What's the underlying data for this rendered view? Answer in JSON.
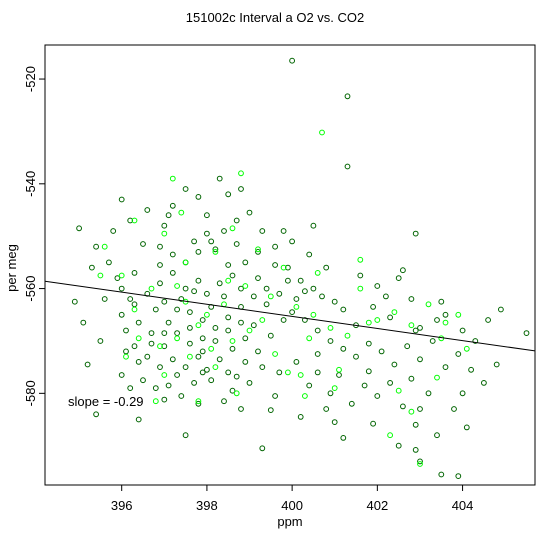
{
  "chart_data": {
    "type": "scatter",
    "title": "151002c   Interval a O2 vs. CO2",
    "xlabel": "ppm",
    "ylabel": "per meg",
    "xlim": [
      394.2,
      405.7
    ],
    "ylim": [
      -597.5,
      -513.5
    ],
    "x_ticks": [
      396,
      398,
      400,
      402,
      404
    ],
    "x_tick_labels": [
      "396",
      "398",
      "400",
      "402",
      "404"
    ],
    "y_ticks": [
      -520,
      -540,
      -560,
      -580
    ],
    "y_tick_labels": [
      "-520",
      "-540",
      "-560",
      "-580"
    ],
    "annotation": "slope =  -0.29",
    "fit_line": {
      "slope": -0.29,
      "x": [
        394.2,
        405.7
      ],
      "y": [
        -558.6,
        -571.9
      ]
    },
    "colors": {
      "dark_points": "#006400",
      "bright_points": "#00ff00",
      "line": "#000000"
    },
    "series": [
      {
        "color": "#006400",
        "points": [
          [
            400.0,
            -516.5
          ],
          [
            401.3,
            -523.3
          ],
          [
            401.3,
            -536.7
          ],
          [
            397.2,
            -544.2
          ],
          [
            397.0,
            -548.0
          ],
          [
            396.9,
            -552.0
          ],
          [
            396.3,
            -557.0
          ],
          [
            396.0,
            -560.0
          ],
          [
            395.6,
            -562.0
          ],
          [
            395.5,
            -570.0
          ],
          [
            395.2,
            -574.5
          ],
          [
            396.1,
            -572.0
          ],
          [
            396.5,
            -577.5
          ],
          [
            397.0,
            -581.2
          ],
          [
            397.8,
            -582.0
          ],
          [
            398.8,
            -583.0
          ],
          [
            399.5,
            -583.2
          ],
          [
            399.3,
            -590.5
          ],
          [
            400.2,
            -584.5
          ],
          [
            401.0,
            -585.5
          ],
          [
            401.9,
            -585.8
          ],
          [
            401.1,
            -576.5
          ],
          [
            400.6,
            -572.5
          ],
          [
            401.8,
            -575.8
          ],
          [
            402.3,
            -578.0
          ],
          [
            402.8,
            -577.2
          ],
          [
            403.0,
            -583.0
          ],
          [
            402.5,
            -590.0
          ],
          [
            402.9,
            -590.8
          ],
          [
            403.0,
            -593.0
          ],
          [
            403.5,
            -595.5
          ],
          [
            403.9,
            -595.8
          ],
          [
            404.0,
            -580.0
          ],
          [
            404.8,
            -574.5
          ],
          [
            404.3,
            -570.0
          ],
          [
            404.6,
            -566.0
          ],
          [
            404.9,
            -564.0
          ],
          [
            405.5,
            -568.5
          ],
          [
            403.5,
            -562.5
          ],
          [
            403.6,
            -565.0
          ],
          [
            403.0,
            -567.5
          ],
          [
            402.8,
            -562.0
          ],
          [
            402.9,
            -549.5
          ],
          [
            402.5,
            -558.0
          ],
          [
            402.2,
            -561.5
          ],
          [
            401.9,
            -563.5
          ],
          [
            401.5,
            -567.0
          ],
          [
            401.2,
            -564.0
          ],
          [
            400.5,
            -560.0
          ],
          [
            399.8,
            -549.0
          ],
          [
            398.8,
            -541.0
          ],
          [
            398.5,
            -542.0
          ],
          [
            398.0,
            -546.0
          ],
          [
            398.2,
            -552.5
          ],
          [
            398.5,
            -555.5
          ],
          [
            398.8,
            -560.0
          ],
          [
            399.2,
            -558.0
          ],
          [
            399.6,
            -555.5
          ],
          [
            399.9,
            -556.0
          ],
          [
            400.2,
            -558.5
          ],
          [
            400.1,
            -562.0
          ],
          [
            399.8,
            -566.0
          ],
          [
            399.5,
            -569.0
          ],
          [
            399.2,
            -572.0
          ],
          [
            398.9,
            -574.0
          ],
          [
            398.5,
            -576.0
          ],
          [
            398.1,
            -577.5
          ],
          [
            397.7,
            -578.0
          ],
          [
            397.3,
            -576.5
          ],
          [
            396.9,
            -575.0
          ],
          [
            396.6,
            -573.0
          ],
          [
            396.3,
            -571.0
          ],
          [
            396.1,
            -568.0
          ],
          [
            396.0,
            -565.0
          ],
          [
            396.3,
            -563.0
          ],
          [
            396.6,
            -561.0
          ],
          [
            396.9,
            -559.0
          ],
          [
            397.2,
            -557.0
          ],
          [
            397.5,
            -555.0
          ],
          [
            397.8,
            -553.0
          ],
          [
            398.1,
            -551.0
          ],
          [
            398.4,
            -549.0
          ],
          [
            398.7,
            -547.0
          ],
          [
            397.4,
            -562.0
          ],
          [
            397.6,
            -564.5
          ],
          [
            397.9,
            -566.0
          ],
          [
            398.2,
            -567.5
          ],
          [
            398.5,
            -565.5
          ],
          [
            398.8,
            -563.5
          ],
          [
            397.1,
            -566.5
          ],
          [
            397.3,
            -568.5
          ],
          [
            397.6,
            -570.5
          ],
          [
            397.9,
            -572.0
          ],
          [
            398.2,
            -570.0
          ],
          [
            398.5,
            -568.0
          ],
          [
            398.8,
            -566.5
          ],
          [
            396.8,
            -564.0
          ],
          [
            397.0,
            -562.5
          ],
          [
            397.5,
            -560.0
          ],
          [
            397.8,
            -558.5
          ],
          [
            398.0,
            -561.0
          ],
          [
            398.3,
            -559.0
          ],
          [
            398.6,
            -557.5
          ],
          [
            398.9,
            -555.0
          ],
          [
            399.1,
            -561.5
          ],
          [
            399.4,
            -563.0
          ],
          [
            399.7,
            -561.0
          ],
          [
            400.0,
            -564.5
          ],
          [
            400.3,
            -566.0
          ],
          [
            400.6,
            -568.0
          ],
          [
            400.9,
            -570.0
          ],
          [
            401.2,
            -571.5
          ],
          [
            401.5,
            -573.0
          ],
          [
            401.8,
            -570.5
          ],
          [
            402.1,
            -572.0
          ],
          [
            402.4,
            -574.5
          ],
          [
            402.7,
            -571.0
          ],
          [
            403.0,
            -573.5
          ],
          [
            403.3,
            -570.0
          ],
          [
            403.6,
            -575.0
          ],
          [
            403.9,
            -572.5
          ],
          [
            404.2,
            -575.5
          ],
          [
            397.0,
            -571.0
          ],
          [
            397.2,
            -573.5
          ],
          [
            397.5,
            -575.0
          ],
          [
            397.8,
            -573.0
          ],
          [
            398.0,
            -575.5
          ],
          [
            398.3,
            -573.5
          ],
          [
            398.6,
            -571.5
          ],
          [
            398.9,
            -569.5
          ],
          [
            399.1,
            -567.0
          ],
          [
            396.4,
            -566.5
          ],
          [
            396.7,
            -568.5
          ],
          [
            396.2,
            -562.0
          ],
          [
            395.9,
            -558.0
          ],
          [
            395.7,
            -555.0
          ],
          [
            395.4,
            -552.0
          ],
          [
            395.8,
            -549.0
          ],
          [
            396.2,
            -547.0
          ],
          [
            396.6,
            -545.0
          ],
          [
            397.5,
            -541.0
          ],
          [
            398.3,
            -539.0
          ],
          [
            399.0,
            -545.5
          ],
          [
            399.3,
            -549.0
          ],
          [
            399.6,
            -552.0
          ],
          [
            400.4,
            -553.5
          ],
          [
            400.8,
            -556.0
          ],
          [
            401.6,
            -557.5
          ],
          [
            402.0,
            -559.5
          ],
          [
            402.6,
            -556.5
          ],
          [
            400.7,
            -561.5
          ],
          [
            401.0,
            -562.5
          ],
          [
            395.0,
            -548.5
          ],
          [
            395.3,
            -556.0
          ],
          [
            394.9,
            -562.5
          ],
          [
            395.1,
            -566.5
          ],
          [
            396.0,
            -576.5
          ],
          [
            396.8,
            -579.0
          ],
          [
            397.4,
            -580.5
          ],
          [
            398.6,
            -579.5
          ],
          [
            399.7,
            -576.0
          ],
          [
            400.4,
            -578.5
          ],
          [
            400.9,
            -580.0
          ],
          [
            401.4,
            -582.0
          ],
          [
            402.0,
            -580.5
          ],
          [
            402.6,
            -582.5
          ],
          [
            403.2,
            -580.0
          ],
          [
            403.8,
            -583.0
          ],
          [
            404.5,
            -578.0
          ],
          [
            399.0,
            -578.0
          ],
          [
            399.3,
            -575.0
          ],
          [
            400.1,
            -574.0
          ],
          [
            400.6,
            -576.0
          ],
          [
            397.6,
            -567.5
          ],
          [
            397.9,
            -569.5
          ],
          [
            398.1,
            -563.5
          ],
          [
            398.4,
            -561.5
          ],
          [
            397.7,
            -560.5
          ],
          [
            397.3,
            -564.0
          ],
          [
            397.0,
            -568.5
          ],
          [
            396.7,
            -570.5
          ],
          [
            396.4,
            -574.0
          ],
          [
            399.4,
            -560.0
          ],
          [
            399.9,
            -558.5
          ],
          [
            400.3,
            -560.5
          ],
          [
            398.7,
            -551.5
          ],
          [
            398.0,
            -549.5
          ],
          [
            397.7,
            -551.0
          ],
          [
            397.2,
            -553.5
          ],
          [
            396.9,
            -555.5
          ],
          [
            396.5,
            -551.5
          ],
          [
            399.2,
            -553.0
          ],
          [
            400.0,
            -551.0
          ],
          [
            400.5,
            -548.0
          ],
          [
            402.3,
            -565.5
          ],
          [
            402.9,
            -568.0
          ],
          [
            403.4,
            -566.0
          ],
          [
            404.0,
            -568.0
          ],
          [
            397.9,
            -576.0
          ],
          [
            398.7,
            -576.8
          ],
          [
            397.1,
            -578.5
          ],
          [
            396.2,
            -579.0
          ],
          [
            398.4,
            -581.5
          ],
          [
            399.6,
            -580.5
          ],
          [
            400.8,
            -583.0
          ],
          [
            401.7,
            -578.5
          ],
          [
            402.9,
            -586.0
          ],
          [
            403.4,
            -588.0
          ],
          [
            404.1,
            -586.5
          ],
          [
            401.2,
            -588.5
          ],
          [
            397.5,
            -588.0
          ],
          [
            396.4,
            -585.0
          ],
          [
            395.4,
            -584.0
          ],
          [
            397.1,
            -546.0
          ],
          [
            396.0,
            -543.0
          ],
          [
            397.8,
            -542.5
          ]
        ]
      },
      {
        "color": "#00ff00",
        "points": [
          [
            400.7,
            -530.2
          ],
          [
            398.8,
            -538.0
          ],
          [
            397.2,
            -539.0
          ],
          [
            396.3,
            -547.0
          ],
          [
            397.0,
            -549.5
          ],
          [
            395.6,
            -552.0
          ],
          [
            396.0,
            -557.5
          ],
          [
            395.5,
            -557.5
          ],
          [
            396.3,
            -564.0
          ],
          [
            397.5,
            -562.5
          ],
          [
            398.0,
            -565.0
          ],
          [
            398.4,
            -563.0
          ],
          [
            397.8,
            -567.0
          ],
          [
            397.3,
            -569.5
          ],
          [
            396.9,
            -571.0
          ],
          [
            397.6,
            -573.0
          ],
          [
            398.1,
            -571.5
          ],
          [
            398.6,
            -570.0
          ],
          [
            399.0,
            -568.0
          ],
          [
            399.3,
            -566.0
          ],
          [
            398.9,
            -559.5
          ],
          [
            399.5,
            -561.5
          ],
          [
            400.1,
            -563.5
          ],
          [
            400.5,
            -565.0
          ],
          [
            400.9,
            -567.5
          ],
          [
            401.3,
            -569.0
          ],
          [
            401.6,
            -560.0
          ],
          [
            402.0,
            -566.0
          ],
          [
            402.4,
            -564.5
          ],
          [
            402.8,
            -567.0
          ],
          [
            403.2,
            -563.0
          ],
          [
            403.5,
            -569.5
          ],
          [
            403.9,
            -565.0
          ],
          [
            404.1,
            -571.5
          ],
          [
            401.0,
            -579.0
          ],
          [
            400.3,
            -580.5
          ],
          [
            398.7,
            -580.0
          ],
          [
            397.8,
            -581.5
          ],
          [
            396.8,
            -581.5
          ],
          [
            402.3,
            -588.0
          ],
          [
            402.8,
            -583.5
          ],
          [
            403.4,
            -577.0
          ],
          [
            403.0,
            -593.5
          ],
          [
            396.4,
            -569.5
          ],
          [
            396.1,
            -573.0
          ],
          [
            397.0,
            -576.5
          ],
          [
            399.9,
            -576.0
          ],
          [
            398.2,
            -575.0
          ],
          [
            397.5,
            -555.0
          ],
          [
            398.2,
            -553.0
          ],
          [
            398.5,
            -558.5
          ],
          [
            399.2,
            -552.5
          ],
          [
            400.6,
            -557.0
          ],
          [
            401.6,
            -554.5
          ],
          [
            401.1,
            -575.5
          ],
          [
            400.4,
            -569.5
          ],
          [
            399.6,
            -572.5
          ],
          [
            396.7,
            -560.0
          ],
          [
            397.3,
            -559.5
          ],
          [
            398.6,
            -548.5
          ],
          [
            397.4,
            -545.5
          ],
          [
            399.8,
            -556.0
          ],
          [
            400.2,
            -576.5
          ],
          [
            401.8,
            -566.5
          ],
          [
            403.6,
            -566.5
          ],
          [
            402.5,
            -579.5
          ]
        ]
      }
    ]
  }
}
